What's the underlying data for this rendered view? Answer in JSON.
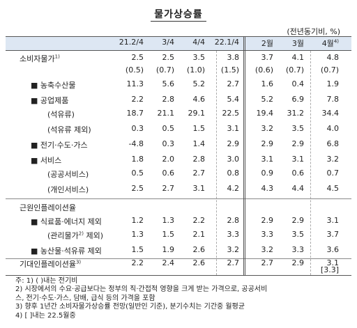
{
  "title": "물가상승률",
  "unit_note": "(전년동기비, %)",
  "columns": [
    "21.2/4",
    "3/4",
    "4/4",
    "22.1/4",
    "2월",
    "3월",
    "4월"
  ],
  "last_column_note": "4)",
  "rows": [
    {
      "label": "소비자물가",
      "sup": "1)",
      "indent": 0,
      "values": [
        "2.5",
        "2.5",
        "3.5",
        "3.8",
        "3.7",
        "4.1",
        "4.8"
      ]
    },
    {
      "label": "",
      "sup": "",
      "indent": 0,
      "values": [
        "(0.5)",
        "(0.7)",
        "(1.0)",
        "(1.5)",
        "(0.6)",
        "(0.7)",
        "(0.7)"
      ]
    },
    {
      "label": "■ 농축수산물",
      "sup": "",
      "indent": 1,
      "values": [
        "11.3",
        "5.6",
        "5.2",
        "2.7",
        "1.6",
        "0.4",
        "1.9"
      ]
    },
    {
      "label": "■ 공업제품",
      "sup": "",
      "indent": 1,
      "values": [
        "2.2",
        "2.8",
        "4.6",
        "5.4",
        "5.2",
        "6.9",
        "7.8"
      ]
    },
    {
      "label": "(석유류)",
      "sup": "",
      "indent": 2,
      "values": [
        "18.7",
        "21.1",
        "29.1",
        "22.5",
        "19.4",
        "31.2",
        "34.4"
      ]
    },
    {
      "label": "(석유류 제외)",
      "sup": "",
      "indent": 2,
      "values": [
        "0.3",
        "0.5",
        "1.5",
        "3.1",
        "3.2",
        "3.5",
        "4.0"
      ]
    },
    {
      "label": "■ 전기·수도·가스",
      "sup": "",
      "indent": 1,
      "values": [
        "-4.8",
        "0.3",
        "1.4",
        "2.9",
        "2.9",
        "2.9",
        "6.8"
      ]
    },
    {
      "label": "■ 서비스",
      "sup": "",
      "indent": 1,
      "values": [
        "1.8",
        "2.0",
        "2.8",
        "3.0",
        "3.1",
        "3.1",
        "3.2"
      ]
    },
    {
      "label": "(공공서비스)",
      "sup": "",
      "indent": 2,
      "values": [
        "0.5",
        "0.6",
        "2.7",
        "0.8",
        "0.9",
        "0.6",
        "0.7"
      ]
    },
    {
      "label": "(개인서비스)",
      "sup": "",
      "indent": 2,
      "values": [
        "2.5",
        "2.7",
        "3.1",
        "4.2",
        "4.3",
        "4.4",
        "4.5"
      ]
    },
    {
      "label": "근원인플레이션율",
      "sup": "",
      "indent": 0,
      "values": [
        "",
        "",
        "",
        "",
        "",
        "",
        ""
      ]
    },
    {
      "label": "■ 식료품·에너지 제외",
      "sup": "",
      "indent": 1,
      "values": [
        "1.2",
        "1.3",
        "2.2",
        "2.8",
        "2.9",
        "2.9",
        "3.1"
      ]
    },
    {
      "label": "(관리물가",
      "sup": "2)",
      "label_suffix": " 제외)",
      "indent": 2,
      "values": [
        "1.3",
        "1.5",
        "2.1",
        "3.3",
        "3.3",
        "3.5",
        "3.7"
      ]
    },
    {
      "label": "■ 농산물·석유류 제외",
      "sup": "",
      "indent": 1,
      "values": [
        "1.5",
        "1.9",
        "2.6",
        "3.2",
        "3.2",
        "3.3",
        "3.6"
      ]
    },
    {
      "label": "기대인플레이션율",
      "sup": "3)",
      "indent": 0,
      "values": [
        "2.2",
        "2.4",
        "2.6",
        "2.7",
        "2.7",
        "2.9",
        "3.1"
      ],
      "extra_last": "[3.3]"
    }
  ],
  "notes": [
    "주: 1) (  )내는 전기비",
    "     2) 시장에서의 수요·공급보다는 정부의 직·간접적 영향을 크게 받는 가격으로, 공공서비",
    "         스, 전기·수도·가스, 담배, 급식 등의 가격을 포함",
    "     3) 향후 1년간 소비자물가상승률 전망(일반인 기준), 분기수치는 기간중 월평균",
    "     4) [ ]내는 22.5월중"
  ]
}
